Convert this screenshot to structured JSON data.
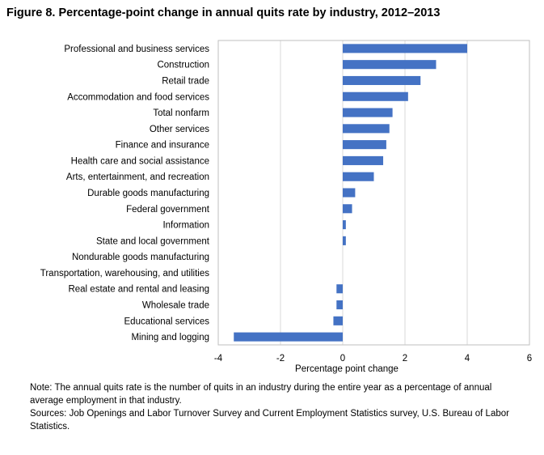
{
  "figure": {
    "title": "Figure 8. Percentage-point change in annual quits rate by industry, 2012–2013"
  },
  "chart_data": {
    "type": "bar",
    "orientation": "horizontal",
    "categories": [
      "Professional and business services",
      "Construction",
      "Retail trade",
      "Accommodation and food services",
      "Total nonfarm",
      "Other services",
      "Finance and insurance",
      "Health care and social assistance",
      "Arts, entertainment, and recreation",
      "Durable goods manufacturing",
      "Federal government",
      "Information",
      "State and local government",
      "Nondurable goods manufacturing",
      "Transportation, warehousing, and utilities",
      "Real estate and rental and leasing",
      "Wholesale trade",
      "Educational services",
      "Mining and logging"
    ],
    "values": [
      4.0,
      3.0,
      2.5,
      2.1,
      1.6,
      1.5,
      1.4,
      1.3,
      1.0,
      0.4,
      0.3,
      0.1,
      0.1,
      0.0,
      0.0,
      -0.2,
      -0.2,
      -0.3,
      -3.5
    ],
    "xlabel": "Percentage point change",
    "ylabel": "",
    "xlim": [
      -4,
      6
    ],
    "xticks": [
      -4,
      -2,
      0,
      2,
      4,
      6
    ],
    "grid": "vertical",
    "bar_color": "#4472c4",
    "grid_color": "#d9d9d9"
  },
  "notes": {
    "note": "Note: The annual quits rate is the number of quits in an industry during the entire year as a percentage of annual average employment in that industry.",
    "sources": "Sources: Job Openings and Labor Turnover Survey and Current Employment Statistics survey, U.S. Bureau of Labor Statistics."
  }
}
